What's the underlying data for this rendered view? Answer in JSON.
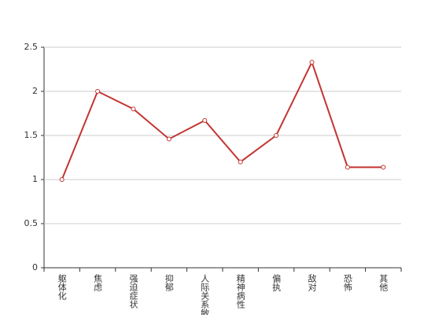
{
  "chart_data": {
    "type": "line",
    "categories": [
      "躯体化",
      "焦虑",
      "强迫症状",
      "抑郁",
      "人际关系敏感",
      "精神病性",
      "偏执",
      "敌对",
      "恐怖",
      "其他"
    ],
    "values": [
      1,
      2,
      1.8,
      1.46,
      1.67,
      1.2,
      1.5,
      2.33,
      1.14,
      1.14
    ],
    "color": "#c23531",
    "ylim": [
      0,
      2.5
    ],
    "yticks": [
      0,
      0.5,
      1,
      1.5,
      2,
      2.5
    ],
    "grid": true
  }
}
